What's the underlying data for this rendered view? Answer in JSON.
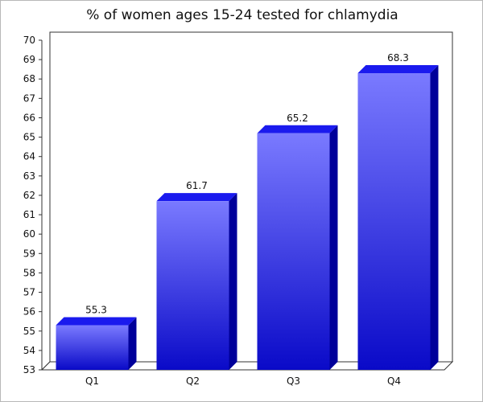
{
  "chart_data": {
    "type": "bar",
    "title": "% of women ages 15-24 tested for chlamydia",
    "xlabel": "",
    "ylabel": "",
    "categories": [
      "Q1",
      "Q2",
      "Q3",
      "Q4"
    ],
    "values": [
      55.3,
      61.7,
      65.2,
      68.3
    ],
    "data_labels": [
      "55.3",
      "61.7",
      "65.2",
      "68.3"
    ],
    "ylim": [
      53,
      70
    ],
    "yticks": [
      53,
      54,
      55,
      56,
      57,
      58,
      59,
      60,
      61,
      62,
      63,
      64,
      65,
      66,
      67,
      68,
      69,
      70
    ],
    "grid": false,
    "legend": false,
    "style": "3d",
    "colors": {
      "bar_top_light": "#7a7aff",
      "bar_bottom_dark": "#0a0ac8",
      "bar_side": "#00009a",
      "bar_top_face": "#1a1aee",
      "axis": "#333333"
    }
  }
}
